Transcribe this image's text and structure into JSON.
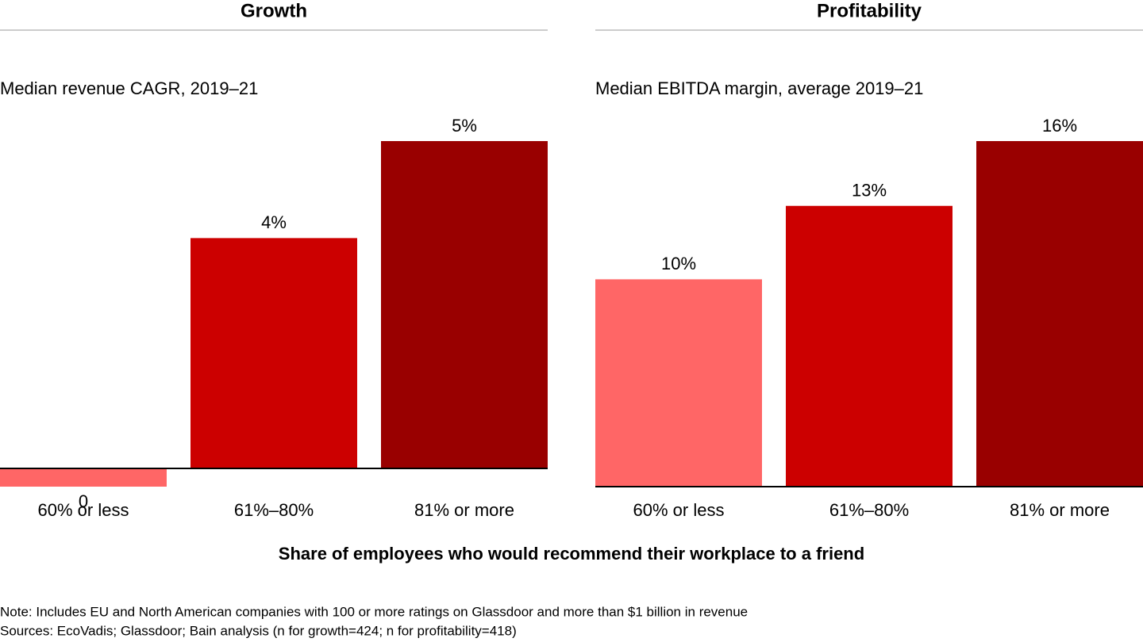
{
  "chart_data": [
    {
      "type": "bar",
      "title": "Growth",
      "subtitle": "Median revenue CAGR, 2019–21",
      "categories": [
        "60% or less",
        "61%–80%",
        "81% or more"
      ],
      "values": [
        -0.3,
        3.8,
        5.4
      ],
      "value_labels": [
        "0",
        "4%",
        "5%"
      ],
      "colors": [
        "#ff6666",
        "#cc0000",
        "#990000"
      ]
    },
    {
      "type": "bar",
      "title": "Profitability",
      "subtitle": "Median EBITDA margin, average 2019–21",
      "categories": [
        "60% or less",
        "61%–80%",
        "81% or more"
      ],
      "values": [
        9.6,
        13,
        16
      ],
      "value_labels": [
        "10%",
        "13%",
        "16%"
      ],
      "colors": [
        "#ff6666",
        "#cc0000",
        "#990000"
      ]
    }
  ],
  "x_axis_title": "Share of employees who would recommend their workplace to a friend",
  "notes": [
    "Note: Includes EU and North American companies with 100 or more ratings on Glassdoor and more than $1 billion in revenue",
    "Sources: EcoVadis; Glassdoor; Bain analysis (n for growth=424; n for profitability=418)"
  ]
}
